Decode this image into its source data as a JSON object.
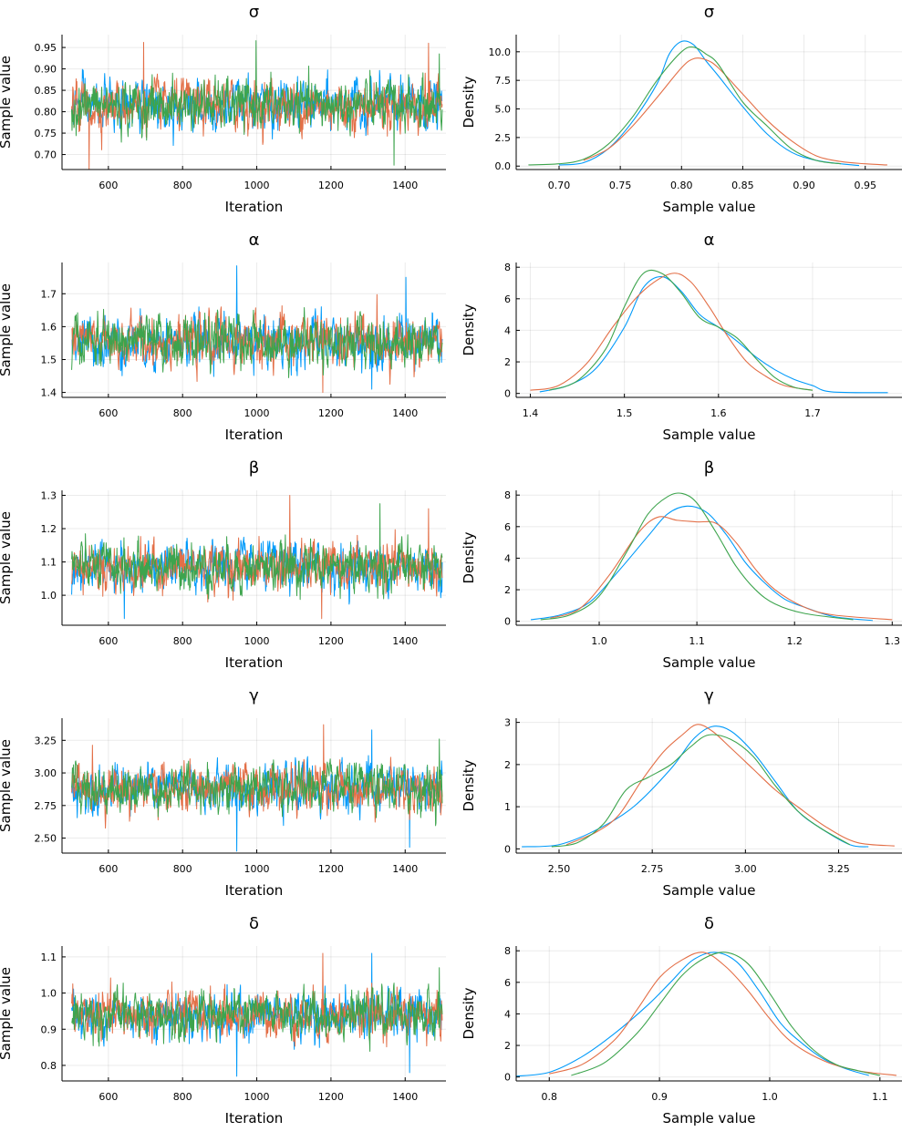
{
  "colors": {
    "series": [
      "#009AFA",
      "#E36F47",
      "#3DA44D"
    ]
  },
  "chart_data": [
    {
      "type": "line",
      "kind": "trace",
      "title": "σ",
      "xlabel": "Iteration",
      "ylabel": "Sample value",
      "xlim": [
        475,
        1510
      ],
      "ylim": [
        0.665,
        0.98
      ],
      "xticks": [
        600,
        800,
        1000,
        1200,
        1400
      ],
      "yticks": [
        0.7,
        0.75,
        0.8,
        0.85,
        0.9,
        0.95
      ],
      "ytick_labels": [
        "0.70",
        "0.75",
        "0.80",
        "0.85",
        "0.90",
        "0.95"
      ],
      "grid": true,
      "x_start": 501,
      "x_end": 1500,
      "center": 0.815,
      "spread": 0.045,
      "spikes": [
        {
          "s": 1,
          "x": 548,
          "v": 0.66
        },
        {
          "s": 1,
          "x": 695,
          "v": 0.962
        },
        {
          "s": 2,
          "x": 998,
          "v": 0.966
        },
        {
          "s": 1,
          "x": 1463,
          "v": 0.96
        },
        {
          "s": 2,
          "x": 1492,
          "v": 0.935
        },
        {
          "s": 2,
          "x": 1370,
          "v": 0.675
        }
      ]
    },
    {
      "type": "line",
      "kind": "density",
      "title": "σ",
      "xlabel": "Sample value",
      "ylabel": "Density",
      "xlim": [
        0.665,
        0.98
      ],
      "ylim": [
        -0.3,
        11.5
      ],
      "xticks": [
        0.7,
        0.75,
        0.8,
        0.85,
        0.9,
        0.95
      ],
      "xtick_labels": [
        "0.70",
        "0.75",
        "0.80",
        "0.85",
        "0.90",
        "0.95"
      ],
      "yticks": [
        0,
        2.5,
        5,
        7.5,
        10
      ],
      "ytick_labels": [
        "0.0",
        "2.5",
        "5.0",
        "7.5",
        "10.0"
      ],
      "grid": true,
      "series": [
        {
          "x": [
            0.7,
            0.72,
            0.74,
            0.76,
            0.78,
            0.79,
            0.8,
            0.81,
            0.82,
            0.83,
            0.85,
            0.87,
            0.89,
            0.91,
            0.93,
            0.945
          ],
          "y": [
            0.1,
            0.3,
            1.5,
            3.9,
            7.2,
            9.8,
            10.9,
            10.6,
            9.2,
            7.9,
            5.2,
            2.8,
            1.2,
            0.5,
            0.2,
            0.05
          ]
        },
        {
          "x": [
            0.72,
            0.74,
            0.76,
            0.78,
            0.8,
            0.81,
            0.82,
            0.83,
            0.85,
            0.87,
            0.89,
            0.91,
            0.93,
            0.95,
            0.968
          ],
          "y": [
            0.5,
            1.5,
            3.5,
            6.0,
            8.6,
            9.4,
            9.3,
            8.6,
            6.3,
            4.0,
            2.2,
            0.9,
            0.4,
            0.2,
            0.1
          ]
        },
        {
          "x": [
            0.675,
            0.7,
            0.72,
            0.74,
            0.76,
            0.78,
            0.8,
            0.81,
            0.82,
            0.83,
            0.85,
            0.87,
            0.89,
            0.91,
            0.93
          ],
          "y": [
            0.1,
            0.2,
            0.6,
            1.9,
            4.3,
            7.5,
            10.0,
            10.4,
            9.8,
            8.9,
            5.6,
            3.5,
            1.5,
            0.5,
            0.2
          ]
        }
      ]
    },
    {
      "type": "line",
      "kind": "trace",
      "title": "α",
      "xlabel": "Iteration",
      "ylabel": "Sample value",
      "xlim": [
        475,
        1510
      ],
      "ylim": [
        1.385,
        1.795
      ],
      "xticks": [
        600,
        800,
        1000,
        1200,
        1400
      ],
      "yticks": [
        1.4,
        1.5,
        1.6,
        1.7
      ],
      "ytick_labels": [
        "1.4",
        "1.5",
        "1.6",
        "1.7"
      ],
      "grid": true,
      "x_start": 501,
      "x_end": 1500,
      "center": 1.555,
      "spread": 0.06,
      "spikes": [
        {
          "s": 0,
          "x": 946,
          "v": 1.785
        },
        {
          "s": 0,
          "x": 1402,
          "v": 1.75
        },
        {
          "s": 1,
          "x": 1178,
          "v": 1.4
        },
        {
          "s": 0,
          "x": 1310,
          "v": 1.41
        }
      ]
    },
    {
      "type": "line",
      "kind": "density",
      "title": "α",
      "xlabel": "Sample value",
      "ylabel": "Density",
      "xlim": [
        1.385,
        1.795
      ],
      "ylim": [
        -0.25,
        8.3
      ],
      "xticks": [
        1.4,
        1.5,
        1.6,
        1.7
      ],
      "xtick_labels": [
        "1.4",
        "1.5",
        "1.6",
        "1.7"
      ],
      "yticks": [
        0,
        2,
        4,
        6,
        8
      ],
      "ytick_labels": [
        "0",
        "2",
        "4",
        "6",
        "8"
      ],
      "grid": true,
      "series": [
        {
          "x": [
            1.41,
            1.44,
            1.47,
            1.5,
            1.52,
            1.54,
            1.56,
            1.58,
            1.6,
            1.62,
            1.64,
            1.66,
            1.68,
            1.7,
            1.72,
            1.78
          ],
          "y": [
            0.1,
            0.5,
            1.6,
            4.2,
            6.7,
            7.4,
            6.5,
            5.0,
            4.2,
            3.3,
            2.3,
            1.5,
            0.9,
            0.5,
            0.1,
            0.05
          ]
        },
        {
          "x": [
            1.4,
            1.43,
            1.46,
            1.49,
            1.52,
            1.55,
            1.57,
            1.59,
            1.61,
            1.63,
            1.65,
            1.67,
            1.7
          ],
          "y": [
            0.2,
            0.5,
            1.9,
            4.4,
            6.5,
            7.6,
            7.1,
            5.5,
            3.6,
            2.0,
            1.1,
            0.5,
            0.2
          ]
        },
        {
          "x": [
            1.42,
            1.45,
            1.48,
            1.5,
            1.52,
            1.54,
            1.56,
            1.58,
            1.6,
            1.62,
            1.64,
            1.66,
            1.68,
            1.7
          ],
          "y": [
            0.2,
            0.8,
            2.8,
            5.5,
            7.6,
            7.6,
            6.4,
            4.8,
            4.2,
            3.5,
            2.2,
            1.0,
            0.4,
            0.2
          ]
        }
      ]
    },
    {
      "type": "line",
      "kind": "trace",
      "title": "β",
      "xlabel": "Iteration",
      "ylabel": "Sample value",
      "xlim": [
        475,
        1510
      ],
      "ylim": [
        0.91,
        1.315
      ],
      "xticks": [
        600,
        800,
        1000,
        1200,
        1400
      ],
      "yticks": [
        1.0,
        1.1,
        1.2,
        1.3
      ],
      "ytick_labels": [
        "1.0",
        "1.1",
        "1.2",
        "1.3"
      ],
      "grid": true,
      "x_start": 501,
      "x_end": 1500,
      "center": 1.085,
      "spread": 0.055,
      "spikes": [
        {
          "s": 1,
          "x": 1089,
          "v": 1.3
        },
        {
          "s": 2,
          "x": 1332,
          "v": 1.275
        },
        {
          "s": 1,
          "x": 1463,
          "v": 1.26
        },
        {
          "s": 0,
          "x": 643,
          "v": 0.93
        },
        {
          "s": 1,
          "x": 1175,
          "v": 0.93
        }
      ]
    },
    {
      "type": "line",
      "kind": "density",
      "title": "β",
      "xlabel": "Sample value",
      "ylabel": "Density",
      "xlim": [
        0.915,
        1.31
      ],
      "ylim": [
        -0.25,
        8.3
      ],
      "xticks": [
        1.0,
        1.1,
        1.2,
        1.3
      ],
      "xtick_labels": [
        "1.0",
        "1.1",
        "1.2",
        "1.3"
      ],
      "yticks": [
        0,
        2,
        4,
        6,
        8
      ],
      "ytick_labels": [
        "0",
        "2",
        "4",
        "6",
        "8"
      ],
      "grid": true,
      "series": [
        {
          "x": [
            0.93,
            0.96,
            0.99,
            1.02,
            1.05,
            1.07,
            1.09,
            1.11,
            1.13,
            1.15,
            1.17,
            1.19,
            1.21,
            1.24,
            1.28
          ],
          "y": [
            0.1,
            0.4,
            1.2,
            3.2,
            5.4,
            6.8,
            7.3,
            6.9,
            5.5,
            3.7,
            2.4,
            1.4,
            0.9,
            0.3,
            0.05
          ]
        },
        {
          "x": [
            0.95,
            0.98,
            1.01,
            1.04,
            1.06,
            1.08,
            1.1,
            1.12,
            1.14,
            1.16,
            1.18,
            1.21,
            1.24,
            1.3
          ],
          "y": [
            0.2,
            0.8,
            2.9,
            5.6,
            6.6,
            6.4,
            6.3,
            6.2,
            5.0,
            3.3,
            2.0,
            0.9,
            0.4,
            0.1
          ]
        },
        {
          "x": [
            0.94,
            0.97,
            1.0,
            1.03,
            1.05,
            1.07,
            1.085,
            1.1,
            1.12,
            1.14,
            1.16,
            1.18,
            1.21,
            1.26
          ],
          "y": [
            0.1,
            0.4,
            1.6,
            4.6,
            6.8,
            7.9,
            8.1,
            7.5,
            5.6,
            3.5,
            2.0,
            1.1,
            0.5,
            0.1
          ]
        }
      ]
    },
    {
      "type": "line",
      "kind": "trace",
      "title": "γ",
      "xlabel": "Iteration",
      "ylabel": "Sample value",
      "xlim": [
        475,
        1510
      ],
      "ylim": [
        2.385,
        3.42
      ],
      "xticks": [
        600,
        800,
        1000,
        1200,
        1400
      ],
      "yticks": [
        2.5,
        2.75,
        3.0,
        3.25
      ],
      "ytick_labels": [
        "2.50",
        "2.75",
        "3.00",
        "3.25"
      ],
      "grid": true,
      "x_start": 501,
      "x_end": 1500,
      "center": 2.88,
      "spread": 0.14,
      "spikes": [
        {
          "s": 1,
          "x": 1180,
          "v": 3.37
        },
        {
          "s": 0,
          "x": 1310,
          "v": 3.33
        },
        {
          "s": 0,
          "x": 946,
          "v": 2.4
        },
        {
          "s": 0,
          "x": 1412,
          "v": 2.43
        },
        {
          "s": 2,
          "x": 1492,
          "v": 3.26
        }
      ]
    },
    {
      "type": "line",
      "kind": "density",
      "title": "γ",
      "xlabel": "Sample value",
      "ylabel": "Density",
      "xlim": [
        2.385,
        3.42
      ],
      "ylim": [
        -0.1,
        3.1
      ],
      "xticks": [
        2.5,
        2.75,
        3.0,
        3.25
      ],
      "xtick_labels": [
        "2.50",
        "2.75",
        "3.00",
        "3.25"
      ],
      "yticks": [
        0,
        1,
        2,
        3
      ],
      "ytick_labels": [
        "0",
        "1",
        "2",
        "3"
      ],
      "grid": true,
      "series": [
        {
          "x": [
            2.4,
            2.5,
            2.6,
            2.7,
            2.8,
            2.86,
            2.91,
            2.96,
            3.02,
            3.08,
            3.14,
            3.2,
            3.28,
            3.33
          ],
          "y": [
            0.05,
            0.1,
            0.45,
            1.0,
            1.9,
            2.6,
            2.9,
            2.8,
            2.3,
            1.6,
            0.9,
            0.5,
            0.1,
            0.05
          ]
        },
        {
          "x": [
            2.52,
            2.6,
            2.66,
            2.72,
            2.78,
            2.83,
            2.87,
            2.91,
            2.96,
            3.02,
            3.08,
            3.14,
            3.22,
            3.3,
            3.4
          ],
          "y": [
            0.1,
            0.4,
            0.8,
            1.6,
            2.3,
            2.7,
            2.95,
            2.8,
            2.4,
            1.9,
            1.4,
            1.0,
            0.5,
            0.15,
            0.07
          ]
        },
        {
          "x": [
            2.48,
            2.55,
            2.62,
            2.68,
            2.74,
            2.8,
            2.85,
            2.9,
            2.96,
            3.02,
            3.08,
            3.14,
            3.2,
            3.28
          ],
          "y": [
            0.05,
            0.15,
            0.6,
            1.4,
            1.7,
            2.0,
            2.4,
            2.7,
            2.6,
            2.2,
            1.5,
            0.9,
            0.5,
            0.1
          ]
        }
      ]
    },
    {
      "type": "line",
      "kind": "trace",
      "title": "δ",
      "xlabel": "Iteration",
      "ylabel": "Sample value",
      "xlim": [
        475,
        1510
      ],
      "ylim": [
        0.757,
        1.13
      ],
      "xticks": [
        600,
        800,
        1000,
        1200,
        1400
      ],
      "yticks": [
        0.8,
        0.9,
        1.0,
        1.1
      ],
      "ytick_labels": [
        "0.8",
        "0.9",
        "1.0",
        "1.1"
      ],
      "grid": true,
      "x_start": 501,
      "x_end": 1500,
      "center": 0.94,
      "spread": 0.05,
      "spikes": [
        {
          "s": 1,
          "x": 1178,
          "v": 1.11
        },
        {
          "s": 0,
          "x": 1310,
          "v": 1.11
        },
        {
          "s": 0,
          "x": 1412,
          "v": 0.78
        },
        {
          "s": 0,
          "x": 946,
          "v": 0.77
        },
        {
          "s": 2,
          "x": 1492,
          "v": 1.07
        }
      ]
    },
    {
      "type": "line",
      "kind": "density",
      "title": "δ",
      "xlabel": "Sample value",
      "ylabel": "Density",
      "xlim": [
        0.77,
        1.12
      ],
      "ylim": [
        -0.25,
        8.3
      ],
      "xticks": [
        0.8,
        0.9,
        1.0,
        1.1
      ],
      "xtick_labels": [
        "0.8",
        "0.9",
        "1.0",
        "1.1"
      ],
      "yticks": [
        0,
        2,
        4,
        6,
        8
      ],
      "ytick_labels": [
        "0",
        "2",
        "4",
        "6",
        "8"
      ],
      "grid": true,
      "series": [
        {
          "x": [
            0.77,
            0.8,
            0.83,
            0.86,
            0.89,
            0.91,
            0.93,
            0.95,
            0.97,
            0.99,
            1.01,
            1.03,
            1.05,
            1.07,
            1.09
          ],
          "y": [
            0.05,
            0.3,
            1.3,
            2.8,
            4.6,
            6.0,
            7.4,
            7.9,
            7.3,
            5.5,
            3.4,
            2.1,
            1.1,
            0.5,
            0.1
          ]
        },
        {
          "x": [
            0.8,
            0.83,
            0.86,
            0.88,
            0.9,
            0.92,
            0.94,
            0.96,
            0.98,
            1.0,
            1.02,
            1.05,
            1.08,
            1.115
          ],
          "y": [
            0.2,
            0.8,
            2.4,
            4.3,
            6.3,
            7.4,
            7.9,
            7.0,
            5.5,
            3.7,
            2.2,
            1.0,
            0.4,
            0.1
          ]
        },
        {
          "x": [
            0.82,
            0.85,
            0.88,
            0.9,
            0.92,
            0.94,
            0.96,
            0.98,
            1.0,
            1.02,
            1.04,
            1.06,
            1.08,
            1.1
          ],
          "y": [
            0.1,
            0.9,
            2.8,
            4.6,
            6.4,
            7.5,
            7.9,
            7.2,
            5.3,
            3.2,
            1.7,
            0.8,
            0.4,
            0.1
          ]
        }
      ]
    }
  ]
}
